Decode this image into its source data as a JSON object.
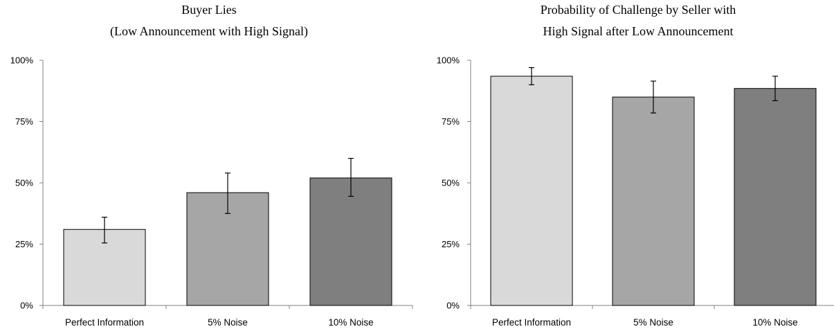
{
  "chart_data": [
    {
      "type": "bar",
      "title_lines": [
        "Buyer Lies",
        "(Low Announcement with High Signal)"
      ],
      "categories": [
        "Perfect Information",
        "5% Noise",
        "10% Noise"
      ],
      "values": [
        31,
        46,
        52
      ],
      "error_low": [
        25.5,
        37.5,
        44.5
      ],
      "error_high": [
        36,
        54,
        60
      ],
      "bar_colors": [
        "#d9d9d9",
        "#a6a6a6",
        "#7f7f7f"
      ],
      "yticks": [
        "0%",
        "25%",
        "50%",
        "75%",
        "100%"
      ],
      "ylim": [
        0,
        100
      ],
      "grid": false,
      "legend": "none",
      "xlabel": "",
      "ylabel": ""
    },
    {
      "type": "bar",
      "title_lines": [
        "Probability of Challenge by Seller with",
        "High Signal after Low Announcement"
      ],
      "categories": [
        "Perfect Information",
        "5% Noise",
        "10% Noise"
      ],
      "values": [
        93.5,
        85,
        88.5
      ],
      "error_low": [
        90,
        78.5,
        83.5
      ],
      "error_high": [
        97,
        91.5,
        93.5
      ],
      "bar_colors": [
        "#d9d9d9",
        "#a6a6a6",
        "#7f7f7f"
      ],
      "yticks": [
        "0%",
        "25%",
        "50%",
        "75%",
        "100%"
      ],
      "ylim": [
        0,
        100
      ],
      "grid": false,
      "legend": "none",
      "xlabel": "",
      "ylabel": ""
    }
  ]
}
